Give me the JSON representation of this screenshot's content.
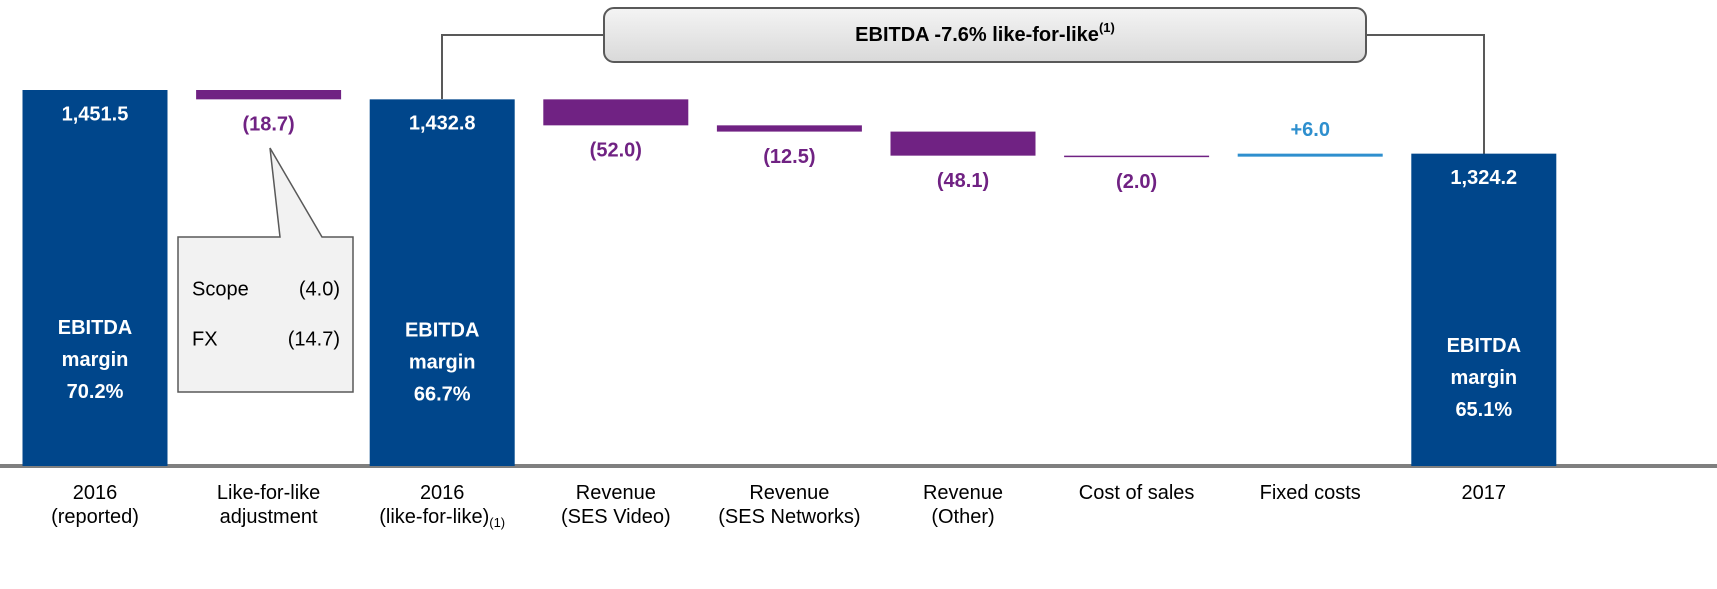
{
  "chart_data": {
    "type": "waterfall",
    "title": "EBITDA -7.6% like-for-like",
    "title_note": "(1)",
    "categories": [
      [
        "2016",
        "(reported)"
      ],
      [
        "Like-for-like",
        "adjustment"
      ],
      [
        "2016",
        "(like-for-like)"
      ],
      [
        "Revenue",
        "(SES Video)"
      ],
      [
        "Revenue",
        "(SES Networks)"
      ],
      [
        "Revenue",
        "(Other)"
      ],
      [
        "Cost of sales"
      ],
      [
        "Fixed costs"
      ],
      [
        "2017"
      ]
    ],
    "category_notes": [
      null,
      null,
      "(1)",
      null,
      null,
      null,
      null,
      null,
      null
    ],
    "values": [
      1451.5,
      -18.7,
      1432.8,
      -52.0,
      -12.5,
      -48.1,
      -2.0,
      6.0,
      1324.2
    ],
    "value_labels": [
      "1,451.5",
      "(18.7)",
      "1,432.8",
      "(52.0)",
      "(12.5)",
      "(48.1)",
      "(2.0)",
      "+6.0",
      "1,324.2"
    ],
    "totals": [
      true,
      false,
      true,
      false,
      false,
      false,
      false,
      false,
      true
    ],
    "margin_labels": [
      [
        "EBITDA",
        "margin",
        "70.2%"
      ],
      null,
      [
        "EBITDA",
        "margin",
        "66.7%"
      ],
      null,
      null,
      null,
      null,
      null,
      [
        "EBITDA",
        "margin",
        "65.1%"
      ]
    ],
    "colors": {
      "total": "#00468b",
      "decrease": "#702283",
      "increase": "#2e8fce"
    },
    "callout": {
      "rows": [
        [
          "Scope",
          "(4.0)"
        ],
        [
          "FX",
          "(14.7)"
        ]
      ]
    }
  }
}
